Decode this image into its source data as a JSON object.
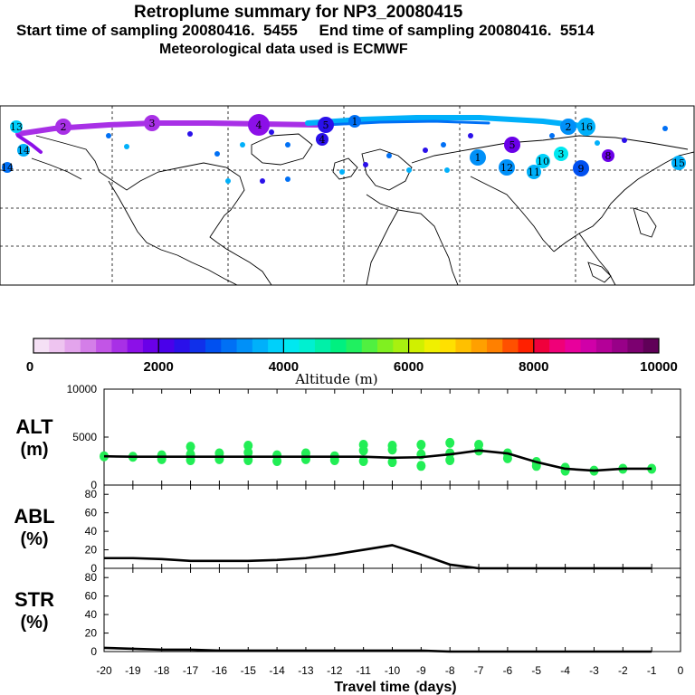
{
  "header": {
    "line1": "Retroplume summary for NP3_20080415",
    "line2": "Start time of sampling 20080416.  5455     End time of sampling 20080416.  5514",
    "line3": "Meteorological data used is ECMWF"
  },
  "colorbar": {
    "tick_labels": [
      "0",
      "2000",
      "4000",
      "6000",
      "8000",
      "10000"
    ],
    "axis_label": "Altitude (m)",
    "colors": [
      "#f5e0f5",
      "#eec4f0",
      "#e3a4ec",
      "#d47ee8",
      "#c255e6",
      "#a830e6",
      "#8c10e8",
      "#6a00e8",
      "#4a00ea",
      "#2a10ea",
      "#1030ea",
      "#0050f0",
      "#0070f5",
      "#0090f8",
      "#00b0fa",
      "#00d0fa",
      "#00e8f0",
      "#00f0d0",
      "#00f0a8",
      "#00f080",
      "#20f060",
      "#50f040",
      "#80f020",
      "#a8f010",
      "#d0f000",
      "#f0f000",
      "#ffe000",
      "#ffc000",
      "#ffa000",
      "#ff8000",
      "#ff5000",
      "#ff2000",
      "#f0003c",
      "#f00078",
      "#e8009c",
      "#d000a8",
      "#b40098",
      "#980088",
      "#7c0070",
      "#600058"
    ]
  },
  "map": {
    "plume_labels": [
      "13",
      "2",
      "3",
      "4",
      "5",
      "1",
      "14",
      "15",
      "16",
      "10",
      "12",
      "11",
      "9",
      "8"
    ]
  },
  "chart_data": [
    {
      "type": "line",
      "panel": "ALT",
      "ylabel": "ALT",
      "yunits": "(m)",
      "ylim": [
        0,
        10000
      ],
      "ytick_labels": [
        "10000",
        "5000",
        "0"
      ],
      "x": [
        -20,
        -19,
        -18,
        -17,
        -16,
        -15,
        -14,
        -13,
        -12,
        -11,
        -10,
        -9,
        -8,
        -7,
        -6,
        -5,
        -4,
        -3,
        -2,
        -1
      ],
      "values": [
        3000,
        2950,
        2950,
        2950,
        2950,
        2950,
        2950,
        2950,
        2950,
        2950,
        2850,
        2900,
        3200,
        3600,
        3300,
        2400,
        1700,
        1500,
        1700,
        1700
      ],
      "scatter": [
        [
          -20,
          3000
        ],
        [
          -19,
          2950
        ],
        [
          -18,
          3100
        ],
        [
          -18,
          2700
        ],
        [
          -17,
          3200
        ],
        [
          -17,
          2600
        ],
        [
          -17,
          4000
        ],
        [
          -16,
          3300
        ],
        [
          -16,
          2700
        ],
        [
          -15,
          3400
        ],
        [
          -15,
          2600
        ],
        [
          -15,
          4100
        ],
        [
          -14,
          3100
        ],
        [
          -14,
          2500
        ],
        [
          -13,
          3300
        ],
        [
          -13,
          2700
        ],
        [
          -12,
          3000
        ],
        [
          -12,
          2600
        ],
        [
          -11,
          3600
        ],
        [
          -11,
          2500
        ],
        [
          -11,
          4200
        ],
        [
          -10,
          3700
        ],
        [
          -10,
          2400
        ],
        [
          -10,
          4100
        ],
        [
          -9,
          3200
        ],
        [
          -9,
          2000
        ],
        [
          -9,
          4200
        ],
        [
          -8,
          4400
        ],
        [
          -8,
          3300
        ],
        [
          -8,
          2600
        ],
        [
          -7,
          4200
        ],
        [
          -7,
          3600
        ],
        [
          -6,
          3300
        ],
        [
          -6,
          2800
        ],
        [
          -5,
          2400
        ],
        [
          -5,
          2000
        ],
        [
          -4,
          1800
        ],
        [
          -4,
          1500
        ],
        [
          -3,
          1500
        ],
        [
          -2,
          1700
        ],
        [
          -1,
          1700
        ]
      ]
    },
    {
      "type": "line",
      "panel": "ABL",
      "ylabel": "ABL",
      "yunits": "(%)",
      "ylim": [
        0,
        90
      ],
      "ytick_labels": [
        "80",
        "60",
        "40",
        "20",
        "0"
      ],
      "x": [
        -20,
        -19,
        -18,
        -17,
        -16,
        -15,
        -14,
        -13,
        -12,
        -11,
        -10,
        -9,
        -8,
        -7,
        -6,
        -5,
        -4,
        -3,
        -2,
        -1
      ],
      "values": [
        11,
        11,
        10,
        8,
        8,
        8,
        9,
        11,
        15,
        20,
        25,
        15,
        4,
        0,
        0,
        0,
        0,
        0,
        0,
        0
      ]
    },
    {
      "type": "line",
      "panel": "STR",
      "ylabel": "STR",
      "yunits": "(%)",
      "ylim": [
        0,
        90
      ],
      "ytick_labels": [
        "80",
        "60",
        "40",
        "20",
        "0"
      ],
      "x": [
        -20,
        -19,
        -18,
        -17,
        -16,
        -15,
        -14,
        -13,
        -12,
        -11,
        -10,
        -9,
        -8,
        -7,
        -6,
        -5,
        -4,
        -3,
        -2,
        -1
      ],
      "values": [
        4,
        3,
        2,
        2,
        1,
        1,
        1,
        1,
        1,
        1,
        1,
        1,
        0,
        0,
        0,
        0,
        0,
        0,
        0,
        0
      ],
      "xlabel": "Travel time (days)",
      "xtick_labels": [
        "-20",
        "-19",
        "-18",
        "-17",
        "-16",
        "-15",
        "-14",
        "-13",
        "-12",
        "-11",
        "-10",
        "-9",
        "-8",
        "-7",
        "-6",
        "-5",
        "-4",
        "-3",
        "-2",
        "-1",
        "0"
      ]
    }
  ]
}
